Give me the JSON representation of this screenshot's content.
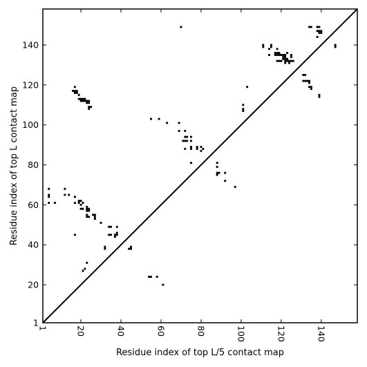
{
  "chart_data": {
    "type": "scatter",
    "title": "",
    "xlabel": "Residue index of top L/5 contact map",
    "ylabel": "Residue index of top L contact map",
    "xlim": [
      1,
      158
    ],
    "ylim": [
      1,
      158
    ],
    "x_ticks": [
      {
        "value": 1,
        "label": "1"
      },
      {
        "value": 20,
        "label": "20"
      },
      {
        "value": 40,
        "label": "40"
      },
      {
        "value": 60,
        "label": "60"
      },
      {
        "value": 80,
        "label": "80"
      },
      {
        "value": 100,
        "label": "100"
      },
      {
        "value": 120,
        "label": "120"
      },
      {
        "value": 140,
        "label": "140"
      }
    ],
    "y_ticks": [
      {
        "value": 1,
        "label": "1"
      },
      {
        "value": 20,
        "label": "20"
      },
      {
        "value": 40,
        "label": "40"
      },
      {
        "value": 60,
        "label": "60"
      },
      {
        "value": 80,
        "label": "80"
      },
      {
        "value": 100,
        "label": "100"
      },
      {
        "value": 120,
        "label": "120"
      },
      {
        "value": 140,
        "label": "140"
      }
    ],
    "diagonal": true,
    "grid": false,
    "marker_color": "#000000",
    "series": [
      {
        "points": [
          [
            4,
            68
          ],
          [
            4,
            65
          ],
          [
            4,
            64
          ],
          [
            4,
            61
          ],
          [
            7,
            61
          ],
          [
            12,
            68
          ],
          [
            12,
            65
          ],
          [
            14,
            65
          ],
          [
            17,
            64
          ],
          [
            17,
            61
          ],
          [
            17,
            45
          ],
          [
            19,
            62
          ],
          [
            19,
            61
          ],
          [
            20,
            62
          ],
          [
            20,
            60
          ],
          [
            21,
            61
          ],
          [
            20,
            58
          ],
          [
            21,
            58
          ],
          [
            23,
            59
          ],
          [
            23,
            58
          ],
          [
            24,
            58
          ],
          [
            24,
            57
          ],
          [
            23,
            57
          ],
          [
            23,
            55
          ],
          [
            24,
            54
          ],
          [
            23,
            54
          ],
          [
            26,
            55
          ],
          [
            27,
            55
          ],
          [
            27,
            54
          ],
          [
            27,
            53
          ],
          [
            30,
            51
          ],
          [
            34,
            49
          ],
          [
            35,
            49
          ],
          [
            38,
            49
          ],
          [
            34,
            45
          ],
          [
            35,
            45
          ],
          [
            37,
            45
          ],
          [
            38,
            46
          ],
          [
            38,
            45
          ],
          [
            37,
            44
          ],
          [
            32,
            39
          ],
          [
            32,
            38
          ],
          [
            44,
            38
          ],
          [
            45,
            39
          ],
          [
            45,
            38
          ],
          [
            21,
            27
          ],
          [
            22,
            28
          ],
          [
            23,
            31
          ],
          [
            16,
            117
          ],
          [
            17,
            117
          ],
          [
            17,
            116
          ],
          [
            17,
            119
          ],
          [
            18,
            117
          ],
          [
            18,
            116
          ],
          [
            19,
            115
          ],
          [
            19,
            113
          ],
          [
            20,
            113
          ],
          [
            20,
            112
          ],
          [
            21,
            113
          ],
          [
            21,
            112
          ],
          [
            22,
            113
          ],
          [
            22,
            112
          ],
          [
            23,
            112
          ],
          [
            23,
            111
          ],
          [
            24,
            112
          ],
          [
            24,
            111
          ],
          [
            24,
            109
          ],
          [
            24,
            108
          ],
          [
            25,
            109
          ],
          [
            54,
            24
          ],
          [
            55,
            24
          ],
          [
            58,
            24
          ],
          [
            61,
            20
          ],
          [
            55,
            103
          ],
          [
            59,
            103
          ],
          [
            63,
            101
          ],
          [
            69,
            101
          ],
          [
            69,
            97
          ],
          [
            72,
            97
          ],
          [
            71,
            92
          ],
          [
            72,
            92
          ],
          [
            73,
            92
          ],
          [
            72,
            94
          ],
          [
            73,
            94
          ],
          [
            72,
            88
          ],
          [
            75,
            94
          ],
          [
            75,
            92
          ],
          [
            75,
            89
          ],
          [
            75,
            88
          ],
          [
            78,
            89
          ],
          [
            78,
            88
          ],
          [
            80,
            89
          ],
          [
            80,
            87
          ],
          [
            81,
            88
          ],
          [
            75,
            81
          ],
          [
            70,
            149
          ],
          [
            88,
            81
          ],
          [
            88,
            79
          ],
          [
            88,
            76
          ],
          [
            88,
            75
          ],
          [
            89,
            76
          ],
          [
            92,
            76
          ],
          [
            92,
            72
          ],
          [
            97,
            69
          ],
          [
            101,
            110
          ],
          [
            101,
            108
          ],
          [
            101,
            107
          ],
          [
            103,
            119
          ],
          [
            111,
            140
          ],
          [
            111,
            139
          ],
          [
            114,
            138
          ],
          [
            114,
            135
          ],
          [
            115,
            140
          ],
          [
            115,
            139
          ],
          [
            117,
            136
          ],
          [
            117,
            135
          ],
          [
            118,
            136
          ],
          [
            118,
            135
          ],
          [
            119,
            136
          ],
          [
            119,
            135
          ],
          [
            118,
            132
          ],
          [
            119,
            132
          ],
          [
            120,
            132
          ],
          [
            120,
            135
          ],
          [
            121,
            135
          ],
          [
            121,
            134
          ],
          [
            122,
            135
          ],
          [
            122,
            134
          ],
          [
            122,
            133
          ],
          [
            121,
            133
          ],
          [
            122,
            132
          ],
          [
            122,
            131
          ],
          [
            123,
            132
          ],
          [
            123,
            133
          ],
          [
            123,
            136
          ],
          [
            124,
            132
          ],
          [
            124,
            131
          ],
          [
            125,
            132
          ],
          [
            125,
            134
          ],
          [
            125,
            135
          ],
          [
            126,
            132
          ],
          [
            118,
            138
          ],
          [
            131,
            125
          ],
          [
            132,
            125
          ],
          [
            131,
            122
          ],
          [
            132,
            122
          ],
          [
            133,
            122
          ],
          [
            134,
            122
          ],
          [
            134,
            121
          ],
          [
            134,
            119
          ],
          [
            135,
            119
          ],
          [
            135,
            118
          ],
          [
            134,
            149
          ],
          [
            135,
            149
          ],
          [
            138,
            149
          ],
          [
            139,
            149
          ],
          [
            138,
            147
          ],
          [
            139,
            147
          ],
          [
            140,
            147
          ],
          [
            139,
            146
          ],
          [
            140,
            146
          ],
          [
            138,
            144
          ],
          [
            139,
            115
          ],
          [
            139,
            114
          ],
          [
            147,
            140
          ],
          [
            147,
            139
          ]
        ]
      }
    ]
  }
}
